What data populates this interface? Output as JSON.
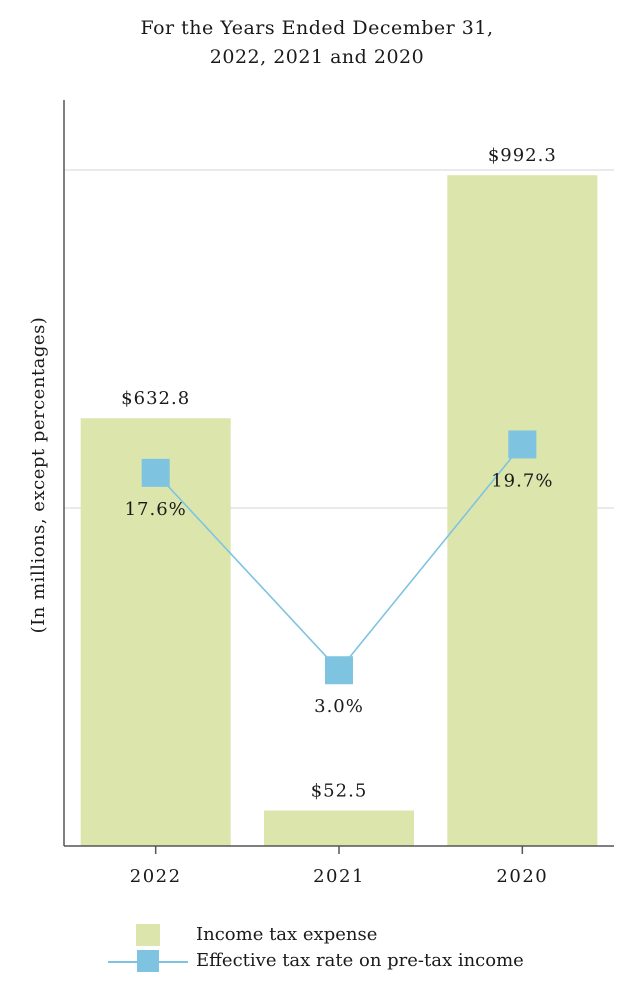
{
  "chart_data": {
    "type": "bar",
    "title": "For the Years Ended December 31,",
    "subtitle": "2022, 2021 and 2020",
    "ylabel": "(In millions, except percentages)",
    "xlabel": "",
    "categories": [
      "2022",
      "2021",
      "2020"
    ],
    "series": [
      {
        "name": "Income tax expense",
        "type": "bar",
        "values": [
          632.8,
          52.5,
          992.3
        ],
        "labels": [
          "$632.8",
          "$52.5",
          "$992.3"
        ],
        "color": "#dce5ab"
      },
      {
        "name": "Effective tax rate on pre-tax income",
        "type": "line",
        "values": [
          17.6,
          3.0,
          19.7
        ],
        "labels": [
          "17.6%",
          "3.0%",
          "19.7%"
        ],
        "color": "#7ec4e1"
      }
    ],
    "ylim_bars": [
      0,
      1000
    ],
    "ylim_line": [
      -10,
      40
    ],
    "grid": true,
    "legend_position": "bottom"
  }
}
